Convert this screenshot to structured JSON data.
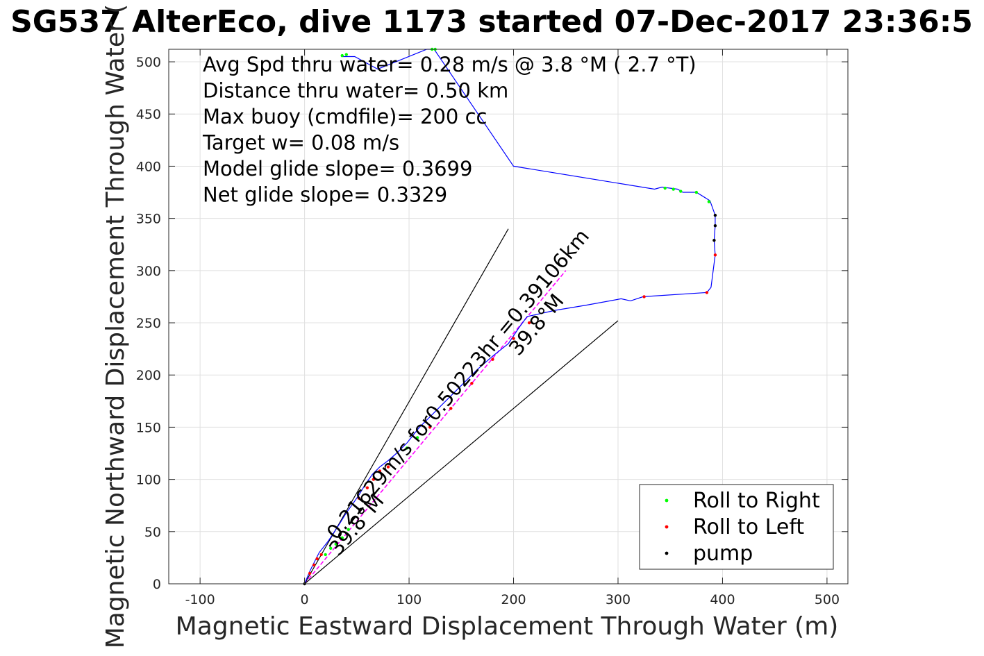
{
  "chart_data": {
    "type": "line",
    "title": "SG537 AlterEco, dive 1173 started 07-Dec-2017 23:36:5",
    "xlabel": "Magnetic Eastward Displacement Through Water (m)",
    "ylabel": "Magnetic Northward Displacement Through Water (",
    "xlim": [
      -130,
      520
    ],
    "ylim": [
      0,
      512
    ],
    "xticks": [
      -100,
      0,
      100,
      200,
      300,
      400,
      500
    ],
    "yticks": [
      0,
      50,
      100,
      150,
      200,
      250,
      300,
      350,
      400,
      450,
      500
    ],
    "grid": true,
    "annotations": [
      "Avg Spd thru water=  0.28 m/s @   3.8 °M (  2.7 °T)",
      "Distance thru water=  0.50 km",
      "Max buoy (cmdfile)= 200 cc",
      "Target w= 0.08 m/s",
      "Model glide slope= 0.3699",
      "Net glide slope= 0.3329"
    ],
    "rotated_labels": {
      "speed_label": "0.21629m/s for0.50223hr =0.39106km",
      "heading_far": "39.8°M",
      "heading_near": "39.8°M"
    },
    "legend": {
      "placement": "bottom-right",
      "entries": [
        {
          "label": "Roll to Right",
          "color": "#00ff00"
        },
        {
          "label": "Roll to Left",
          "color": "#ff0000"
        },
        {
          "label": "pump",
          "color": "#000000"
        }
      ]
    },
    "series": [
      {
        "role": "track",
        "color": "#0000ff",
        "x": [
          0,
          5,
          10,
          14,
          18,
          22,
          26,
          30,
          35,
          40,
          45,
          52,
          58,
          65,
          72,
          80,
          88,
          98,
          110,
          122,
          135,
          150,
          165,
          180,
          195,
          205,
          213,
          240,
          270,
          303,
          312,
          324,
          385,
          389,
          393,
          392,
          393,
          393,
          388,
          375,
          362,
          357,
          342,
          335,
          200,
          124,
          117,
          70,
          48,
          40,
          35
        ],
        "y": [
          0,
          12,
          22,
          30,
          35,
          40,
          46,
          52,
          60,
          68,
          75,
          85,
          95,
          105,
          112,
          118,
          125,
          135,
          150,
          162,
          175,
          190,
          205,
          218,
          230,
          245,
          256,
          262,
          267,
          273,
          271,
          275,
          279,
          284,
          315,
          329,
          343,
          353,
          367,
          375,
          375,
          378,
          380,
          378,
          400,
          512,
          512,
          493,
          505,
          505,
          505
        ]
      },
      {
        "role": "course-through-water",
        "color": "#ff00ff",
        "x": [
          0,
          250
        ],
        "y": [
          0,
          300
        ]
      },
      {
        "role": "heading-boundary",
        "color": "#000000",
        "x": [
          0,
          195
        ],
        "y": [
          0,
          340
        ]
      },
      {
        "role": "heading-boundary",
        "color": "#000000",
        "x": [
          0,
          300
        ],
        "y": [
          0,
          252
        ]
      },
      {
        "role": "roll-to-right",
        "color": "#00ff00",
        "x": [
          20,
          25,
          30,
          36,
          42,
          98,
          108,
          345,
          353,
          360,
          375,
          387,
          40,
          36,
          122,
          125
        ],
        "y": [
          28,
          34,
          38,
          44,
          52,
          130,
          140,
          379,
          378,
          376,
          375,
          366,
          507,
          506,
          512,
          512
        ]
      },
      {
        "role": "roll-to-left",
        "color": "#ff0000",
        "x": [
          5,
          9,
          12,
          16,
          52,
          60,
          66,
          72,
          80,
          120,
          140,
          160,
          180,
          200,
          215,
          325,
          385,
          393
        ],
        "y": [
          10,
          18,
          24,
          28,
          82,
          92,
          100,
          108,
          112,
          150,
          168,
          192,
          215,
          235,
          250,
          275,
          279,
          315
        ]
      },
      {
        "role": "pump",
        "color": "#000000",
        "x": [
          0,
          392,
          393,
          393
        ],
        "y": [
          0,
          329,
          343,
          353
        ]
      }
    ]
  }
}
